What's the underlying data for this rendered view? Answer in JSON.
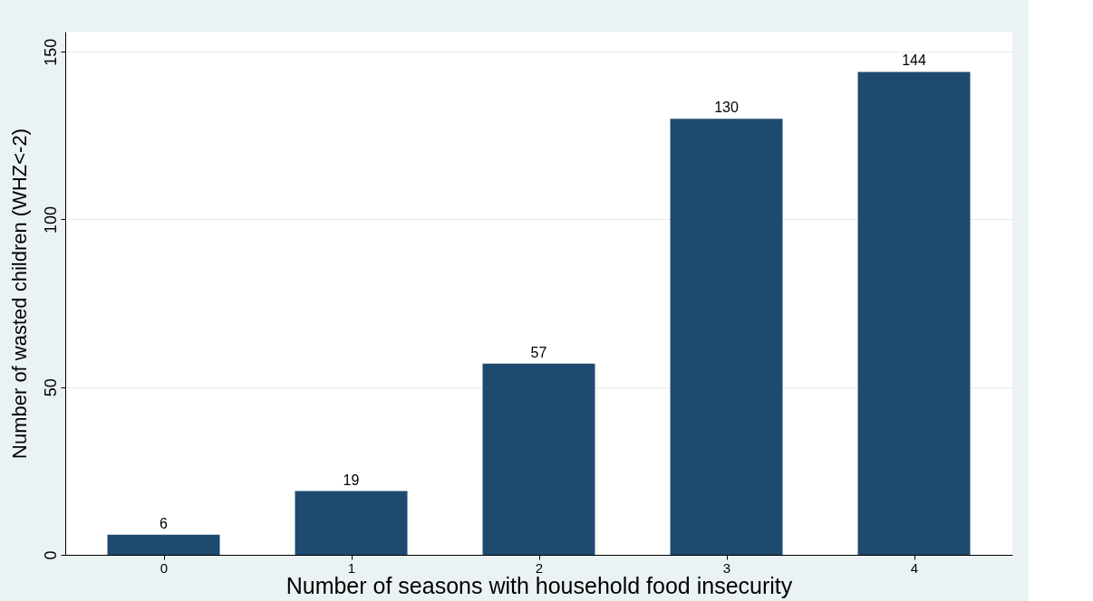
{
  "chart_data": {
    "type": "bar",
    "xlabel": "Number of seasons with household food insecurity",
    "ylabel": "Number of wasted children (WHZ<-2)",
    "categories": [
      "0",
      "1",
      "2",
      "3",
      "4"
    ],
    "values": [
      6,
      19,
      57,
      130,
      144
    ],
    "color": "#1f4a6f",
    "ylim": [
      0,
      156
    ],
    "yticks": [
      0,
      50,
      100,
      150
    ],
    "grid": "y",
    "data_labels": true
  }
}
